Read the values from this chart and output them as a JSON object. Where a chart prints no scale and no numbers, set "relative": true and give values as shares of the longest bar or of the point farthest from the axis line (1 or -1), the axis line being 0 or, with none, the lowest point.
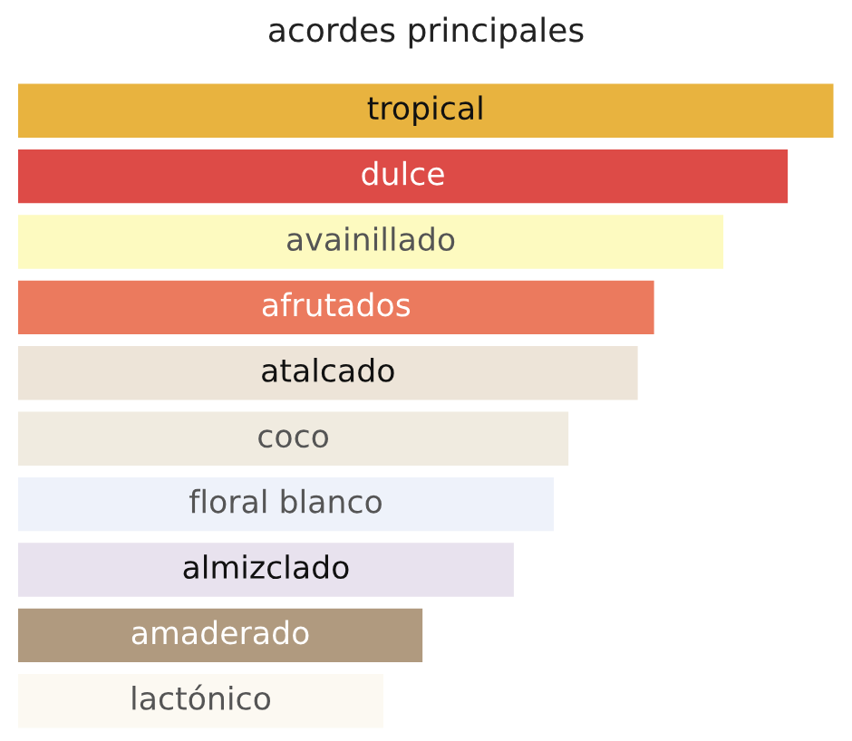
{
  "chart_data": {
    "type": "bar",
    "orientation": "horizontal",
    "relative": true,
    "title": "acordes principales",
    "categories": [
      "tropical",
      "dulce",
      "avainillado",
      "afrutados",
      "atalcado",
      "coco",
      "floral blanco",
      "almizclado",
      "amaderado",
      "lactónico"
    ],
    "values": [
      1,
      0.944,
      0.865,
      0.78,
      0.76,
      0.675,
      0.657,
      0.608,
      0.496,
      0.448
    ],
    "colors": [
      "#e8b33f",
      "#dd4b47",
      "#fdfac0",
      "#eb7a5e",
      "#ede4d8",
      "#f0ebe0",
      "#eef2fa",
      "#e8e2ee",
      "#b09a7f",
      "#fcf9f2"
    ],
    "legend": false
  }
}
